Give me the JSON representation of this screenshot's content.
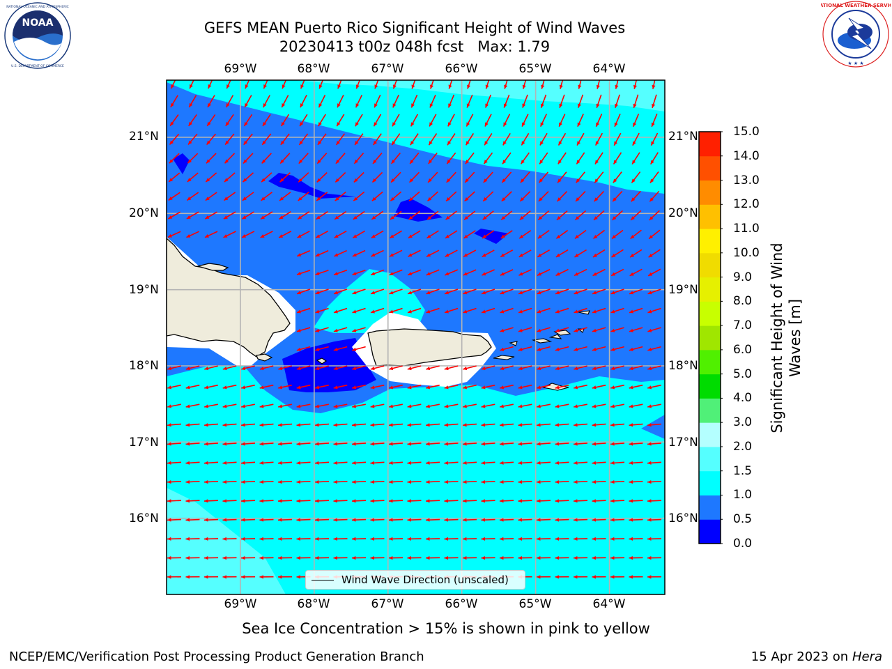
{
  "header": {
    "title_line1": "GEFS MEAN Puerto Rico Significant Height of Wind Waves",
    "title_line2": "20230413 t00z 048h fcst   Max: 1.79"
  },
  "logos": {
    "noaa_text": "NOAA",
    "noaa_ring_text": "NATIONAL OCEANIC AND ATMOSPHERIC ADMINISTRATION · U.S. DEPARTMENT OF COMMERCE",
    "nws_ring_text": "NATIONAL WEATHER SERVICE"
  },
  "map": {
    "lon_labels": [
      "69°W",
      "68°W",
      "67°W",
      "66°W",
      "65°W",
      "64°W"
    ],
    "lat_labels": [
      "21°N",
      "20°N",
      "19°N",
      "18°N",
      "17°N",
      "16°N"
    ],
    "lon_range": [
      -70.0,
      -63.25
    ],
    "lat_range": [
      15.0,
      21.75
    ],
    "legend_label": "Wind Wave Direction (unscaled)",
    "arrow_color": "#ff0000",
    "land_color": "#efecdc"
  },
  "colorbar": {
    "title": "Significant Height of Wind Waves [m]",
    "title_line1": "Significant Height of Wind",
    "title_line2": "Waves [m]",
    "ticks": [
      "15.0",
      "14.0",
      "13.0",
      "12.0",
      "11.0",
      "10.0",
      "9.0",
      "8.0",
      "7.0",
      "6.0",
      "5.0",
      "4.0",
      "3.0",
      "2.0",
      "1.5",
      "1.0",
      "0.5",
      "0.0"
    ],
    "colors_bottom_to_top": [
      "#0000ff",
      "#1e78ff",
      "#00ffff",
      "#55ffff",
      "#b4ffff",
      "#50f078",
      "#00dc00",
      "#50f000",
      "#a0e600",
      "#c8ff00",
      "#e6f000",
      "#f0dc00",
      "#fff000",
      "#ffc000",
      "#ff8c00",
      "#ff5000",
      "#ff2000"
    ]
  },
  "footer": {
    "note": "Sea Ice Concentration > 15% is shown in pink to yellow",
    "credit": "NCEP/EMC/Verification Post Processing Product Generation Branch",
    "date_text": "15 Apr 2023 on ",
    "machine": "Hera"
  }
}
